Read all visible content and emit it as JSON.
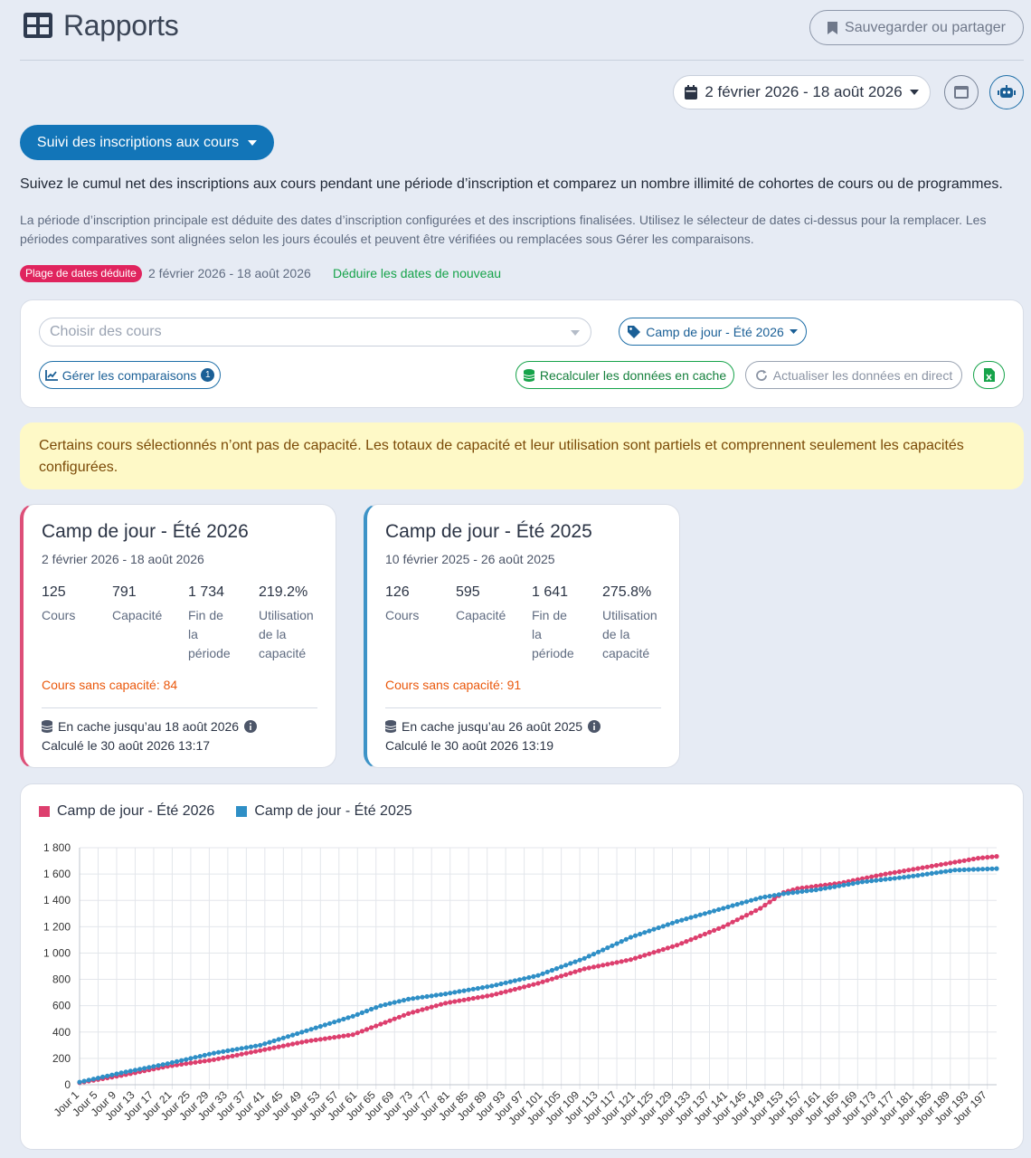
{
  "header": {
    "title": "Rapports",
    "save_label": "Sauvegarder ou partager",
    "date_range": "2 février 2026 - 18 août 2026"
  },
  "report_selector": {
    "label": "Suivi des inscriptions aux cours"
  },
  "description": "Suivez le cumul net des inscriptions aux cours pendant une période d’inscription et comparez un nombre illimité de cohortes de cours ou de programmes.",
  "sub_description": "La période d’inscription principale est déduite des dates d’inscription configurées et des inscriptions finalisées. Utilisez le sélecteur de dates ci-dessus pour la remplacer. Les périodes comparatives sont alignées selon les jours écoulés et peuvent être vérifiées ou remplacées sous Gérer les comparaisons.",
  "inferred": {
    "badge": "Plage de dates déduite",
    "range": "2 février 2026 - 18 août 2026",
    "link": "Déduire les dates de nouveau"
  },
  "filters": {
    "course_placeholder": "Choisir des cours",
    "tag_label": "Camp de jour - Été 2026",
    "compare_label": "Gérer les comparaisons",
    "compare_count": "1",
    "recalc_label": "Recalculer les données en cache",
    "refresh_label": "Actualiser les données en direct"
  },
  "warning": "Certains cours sélectionnés n’ont pas de capacité. Les totaux de capacité et leur utilisation sont partiels et comprennent seulement les capacités configurées.",
  "cards": [
    {
      "title": "Camp de jour - Été 2026",
      "range": "2 février 2026 - 18 août 2026",
      "courses": "125",
      "courses_label": "Cours",
      "capacity": "791",
      "capacity_label": "Capacité",
      "end": "1 734",
      "end_label": "Fin de la période",
      "util": "219.2%",
      "util_label": "Utilisation de la capacité",
      "no_capacity": "Cours sans capacité: 84",
      "cache": "En cache jusqu’au 18 août 2026",
      "computed": "Calculé le 30 août 2026 13:17"
    },
    {
      "title": "Camp de jour - Été 2025",
      "range": "10 février 2025 - 26 août 2025",
      "courses": "126",
      "courses_label": "Cours",
      "capacity": "595",
      "capacity_label": "Capacité",
      "end": "1 641",
      "end_label": "Fin de la période",
      "util": "275.8%",
      "util_label": "Utilisation de la capacité",
      "no_capacity": "Cours sans capacité: 91",
      "cache": "En cache jusqu’au 26 août 2025",
      "computed": "Calculé le 30 août 2026 13:19"
    }
  ],
  "colors": {
    "series_2026": "#dd3f6e",
    "series_2025": "#2f8fc6",
    "accent": "#1275b8"
  },
  "chart_data": {
    "type": "line",
    "x_label_prefix": "Jour ",
    "x_range": [
      1,
      199
    ],
    "x_tick_every": 4,
    "ylim": [
      0,
      1800
    ],
    "yticks": [
      0,
      200,
      400,
      600,
      800,
      1000,
      1200,
      1400,
      1600,
      1800
    ],
    "ytick_labels": [
      "0",
      "200",
      "400",
      "600",
      "800",
      "1 000",
      "1 200",
      "1 400",
      "1 600",
      "1 800"
    ],
    "grid": true,
    "legend_position": "top-left",
    "series": [
      {
        "name": "Camp de jour - Été 2026",
        "color": "#dd3f6e",
        "points": [
          [
            1,
            15
          ],
          [
            10,
            70
          ],
          [
            20,
            140
          ],
          [
            30,
            190
          ],
          [
            40,
            260
          ],
          [
            50,
            330
          ],
          [
            60,
            380
          ],
          [
            66,
            460
          ],
          [
            72,
            540
          ],
          [
            80,
            620
          ],
          [
            90,
            680
          ],
          [
            100,
            770
          ],
          [
            110,
            880
          ],
          [
            120,
            950
          ],
          [
            130,
            1060
          ],
          [
            140,
            1200
          ],
          [
            148,
            1340
          ],
          [
            153,
            1460
          ],
          [
            156,
            1490
          ],
          [
            165,
            1530
          ],
          [
            175,
            1600
          ],
          [
            185,
            1660
          ],
          [
            195,
            1720
          ],
          [
            199,
            1734
          ]
        ]
      },
      {
        "name": "Camp de jour - Été 2025",
        "color": "#2f8fc6",
        "points": [
          [
            1,
            20
          ],
          [
            10,
            90
          ],
          [
            20,
            160
          ],
          [
            30,
            240
          ],
          [
            40,
            300
          ],
          [
            50,
            410
          ],
          [
            60,
            520
          ],
          [
            66,
            600
          ],
          [
            72,
            650
          ],
          [
            80,
            690
          ],
          [
            90,
            750
          ],
          [
            100,
            830
          ],
          [
            110,
            960
          ],
          [
            120,
            1120
          ],
          [
            130,
            1240
          ],
          [
            140,
            1340
          ],
          [
            148,
            1420
          ],
          [
            153,
            1450
          ],
          [
            160,
            1480
          ],
          [
            170,
            1540
          ],
          [
            180,
            1580
          ],
          [
            190,
            1630
          ],
          [
            199,
            1641
          ]
        ]
      }
    ]
  }
}
